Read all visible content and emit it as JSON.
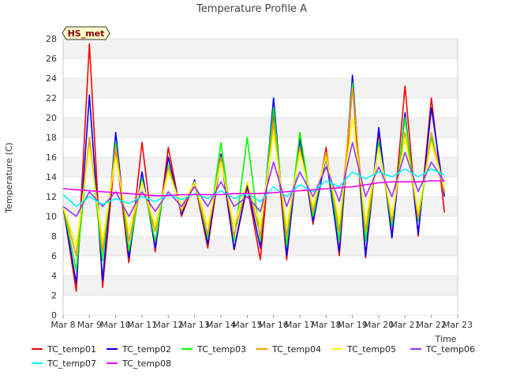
{
  "chart_data": {
    "type": "line",
    "title": "Temperature Profile A",
    "xlabel": "Time",
    "ylabel": "Temperature (C)",
    "badge": "HS_met",
    "ylim": [
      0,
      28
    ],
    "yticks": [
      0,
      2,
      4,
      6,
      8,
      10,
      12,
      14,
      16,
      18,
      20,
      22,
      24,
      26,
      28
    ],
    "xlim": [
      "2024-03-08",
      "2024-03-23"
    ],
    "x_tick_labels": [
      "Mar 8",
      "Mar 9",
      "Mar 10",
      "Mar 11",
      "Mar 12",
      "Mar 13",
      "Mar 14",
      "Mar 15",
      "Mar 16",
      "Mar 17",
      "Mar 18",
      "Mar 19",
      "Mar 20",
      "Mar 21",
      "Mar 22",
      "Mar 23"
    ],
    "grid": "horizontal bands",
    "legend_placement": "bottom",
    "x": [
      "2024-03-08",
      "2024-03-08 12:00",
      "2024-03-09",
      "2024-03-09 12:00",
      "2024-03-10",
      "2024-03-10 12:00",
      "2024-03-11",
      "2024-03-11 12:00",
      "2024-03-12",
      "2024-03-12 12:00",
      "2024-03-13",
      "2024-03-13 12:00",
      "2024-03-14",
      "2024-03-14 12:00",
      "2024-03-15",
      "2024-03-15 12:00",
      "2024-03-16",
      "2024-03-16 12:00",
      "2024-03-17",
      "2024-03-17 12:00",
      "2024-03-18",
      "2024-03-18 12:00",
      "2024-03-19",
      "2024-03-19 12:00",
      "2024-03-20",
      "2024-03-20 12:00",
      "2024-03-21",
      "2024-03-21 12:00",
      "2024-03-22",
      "2024-03-22 12:00"
    ],
    "series": [
      {
        "name": "TC_temp01",
        "color": "#ff0000",
        "values": [
          11.0,
          2.4,
          27.5,
          2.8,
          17.0,
          5.3,
          17.5,
          6.4,
          17.0,
          10.0,
          13.5,
          6.8,
          16.0,
          6.6,
          13.0,
          5.6,
          20.5,
          5.6,
          18.5,
          9.2,
          17.0,
          6.0,
          23.2,
          5.8,
          18.5,
          8.0,
          23.2,
          8.0,
          22.0,
          10.4
        ]
      },
      {
        "name": "TC_temp02",
        "color": "#0000ff",
        "values": [
          11.0,
          3.2,
          22.3,
          3.5,
          18.5,
          5.8,
          14.5,
          6.8,
          16.0,
          10.2,
          13.7,
          7.2,
          16.3,
          6.7,
          13.2,
          6.8,
          22.0,
          6.0,
          17.8,
          9.5,
          16.0,
          6.4,
          24.3,
          6.0,
          19.0,
          7.8,
          20.5,
          8.2,
          21.0,
          12.0
        ]
      },
      {
        "name": "TC_temp03",
        "color": "#00ff00",
        "values": [
          11.0,
          4.5,
          18.0,
          5.5,
          17.5,
          6.5,
          13.8,
          7.5,
          15.2,
          10.5,
          13.5,
          7.8,
          17.5,
          7.5,
          18.0,
          7.5,
          21.0,
          7.0,
          18.5,
          10.0,
          16.5,
          7.5,
          23.5,
          7.5,
          17.5,
          9.0,
          20.0,
          9.5,
          18.0,
          12.5
        ]
      },
      {
        "name": "TC_temp04",
        "color": "#ff9900",
        "values": [
          11.0,
          6.0,
          18.0,
          6.5,
          17.0,
          7.5,
          13.5,
          8.5,
          15.0,
          10.5,
          13.5,
          8.2,
          16.0,
          8.0,
          13.5,
          8.0,
          19.5,
          8.0,
          17.0,
          10.5,
          16.5,
          8.5,
          23.0,
          8.5,
          17.0,
          9.5,
          18.5,
          9.8,
          18.5,
          12.5
        ]
      },
      {
        "name": "TC_temp05",
        "color": "#ffff00",
        "values": [
          11.0,
          7.0,
          17.0,
          7.5,
          16.0,
          8.5,
          13.5,
          9.0,
          14.5,
          11.0,
          13.5,
          9.0,
          15.5,
          9.0,
          13.5,
          9.0,
          18.5,
          9.0,
          16.5,
          11.0,
          16.0,
          9.5,
          20.0,
          9.5,
          17.0,
          10.0,
          18.0,
          10.5,
          17.5,
          12.8
        ]
      },
      {
        "name": "TC_temp06",
        "color": "#9933ff",
        "values": [
          11.0,
          10.0,
          12.5,
          11.0,
          12.5,
          10.0,
          12.5,
          10.5,
          12.5,
          11.0,
          13.0,
          11.0,
          13.5,
          11.0,
          12.0,
          10.5,
          15.5,
          11.0,
          14.5,
          12.0,
          15.0,
          11.5,
          17.5,
          12.0,
          15.0,
          12.0,
          16.5,
          12.5,
          15.5,
          13.5
        ]
      },
      {
        "name": "TC_temp07",
        "color": "#00ffff",
        "values": [
          12.2,
          11.0,
          12.0,
          11.2,
          11.8,
          11.3,
          12.0,
          11.5,
          12.2,
          11.7,
          12.3,
          11.8,
          12.6,
          11.8,
          12.3,
          11.5,
          13.0,
          12.0,
          13.2,
          12.5,
          13.6,
          13.0,
          14.5,
          13.8,
          14.5,
          14.0,
          14.8,
          14.0,
          14.8,
          14.2
        ]
      },
      {
        "name": "TC_temp08",
        "color": "#ee00ee",
        "values": [
          12.8,
          12.7,
          12.6,
          12.5,
          12.4,
          12.3,
          12.2,
          12.1,
          12.1,
          12.2,
          12.2,
          12.2,
          12.2,
          12.3,
          12.3,
          12.3,
          12.4,
          12.5,
          12.6,
          12.7,
          12.8,
          12.9,
          13.0,
          13.2,
          13.4,
          13.5,
          13.5,
          13.5,
          13.6,
          13.6
        ]
      }
    ]
  }
}
